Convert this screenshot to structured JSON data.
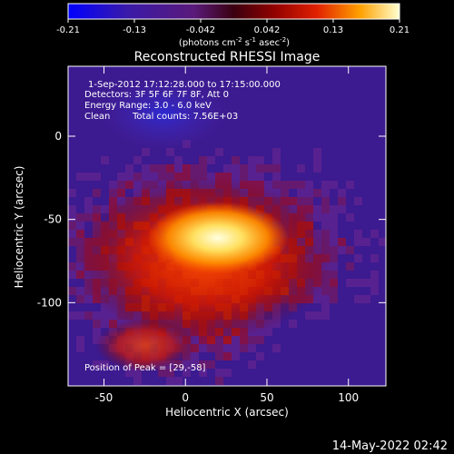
{
  "colorbar": {
    "ticks": [
      "-0.21",
      "-0.13",
      "-0.042",
      "0.042",
      "0.13",
      "0.21"
    ],
    "unit_label_prefix": "(photons cm",
    "unit_exp1": "-2",
    "unit_mid": " s",
    "unit_exp2": "-1",
    "unit_mid2": " asec",
    "unit_exp3": "-2",
    "unit_suffix": ")"
  },
  "title": "Reconstructed RHESSI Image",
  "annotations": {
    "time_range": "1-Sep-2012 17:12:28.000 to 17:15:00.000",
    "detectors": "Detectors: 3F 5F 6F 7F 8F, Att 0",
    "energy": "Energy Range: 3.0 - 6.0 keV",
    "algorithm": "Clean",
    "counts": "Total counts: 7.56E+03",
    "peak": "Position of Peak = [29,-58]"
  },
  "axes": {
    "xlabel": "Heliocentric X (arcsec)",
    "ylabel": "Heliocentric Y (arcsec)",
    "xticks": [
      "-50",
      "0",
      "50",
      "100"
    ],
    "xtick_values": [
      -50,
      0,
      50,
      100
    ],
    "yticks": [
      "0",
      "-50",
      "-100"
    ],
    "ytick_values": [
      0,
      -50,
      -100
    ],
    "xrange": [
      -72,
      123
    ],
    "yrange": [
      -150,
      42
    ]
  },
  "footer_date": "14-May-2022 02:42",
  "colors": {
    "background": "#000000",
    "foreground": "#ffffff"
  }
}
